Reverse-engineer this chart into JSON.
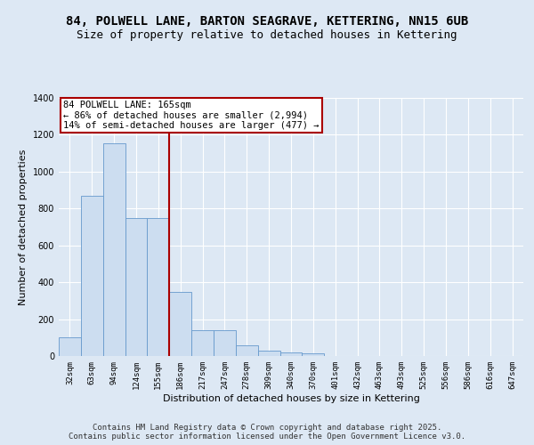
{
  "title_line1": "84, POLWELL LANE, BARTON SEAGRAVE, KETTERING, NN15 6UB",
  "title_line2": "Size of property relative to detached houses in Kettering",
  "xlabel": "Distribution of detached houses by size in Kettering",
  "ylabel": "Number of detached properties",
  "categories": [
    "32sqm",
    "63sqm",
    "94sqm",
    "124sqm",
    "155sqm",
    "186sqm",
    "217sqm",
    "247sqm",
    "278sqm",
    "309sqm",
    "340sqm",
    "370sqm",
    "401sqm",
    "432sqm",
    "463sqm",
    "493sqm",
    "525sqm",
    "556sqm",
    "586sqm",
    "616sqm",
    "647sqm"
  ],
  "values": [
    100,
    870,
    1155,
    750,
    750,
    350,
    140,
    140,
    60,
    30,
    20,
    15,
    0,
    0,
    0,
    0,
    0,
    0,
    0,
    0,
    0
  ],
  "bar_color": "#ccddf0",
  "bar_edge_color": "#6699cc",
  "vline_color": "#aa0000",
  "annotation_text": "84 POLWELL LANE: 165sqm\n← 86% of detached houses are smaller (2,994)\n14% of semi-detached houses are larger (477) →",
  "annotation_box_color": "#ffffff",
  "annotation_box_edge": "#aa0000",
  "ylim": [
    0,
    1400
  ],
  "yticks": [
    0,
    200,
    400,
    600,
    800,
    1000,
    1200,
    1400
  ],
  "footer_text": "Contains HM Land Registry data © Crown copyright and database right 2025.\nContains public sector information licensed under the Open Government Licence v3.0.",
  "background_color": "#dde8f4",
  "plot_bg_color": "#dde8f4",
  "grid_color": "#ffffff",
  "title_fontsize": 10,
  "subtitle_fontsize": 9,
  "axis_label_fontsize": 8,
  "tick_fontsize": 6.5,
  "annotation_fontsize": 7.5,
  "footer_fontsize": 6.5
}
